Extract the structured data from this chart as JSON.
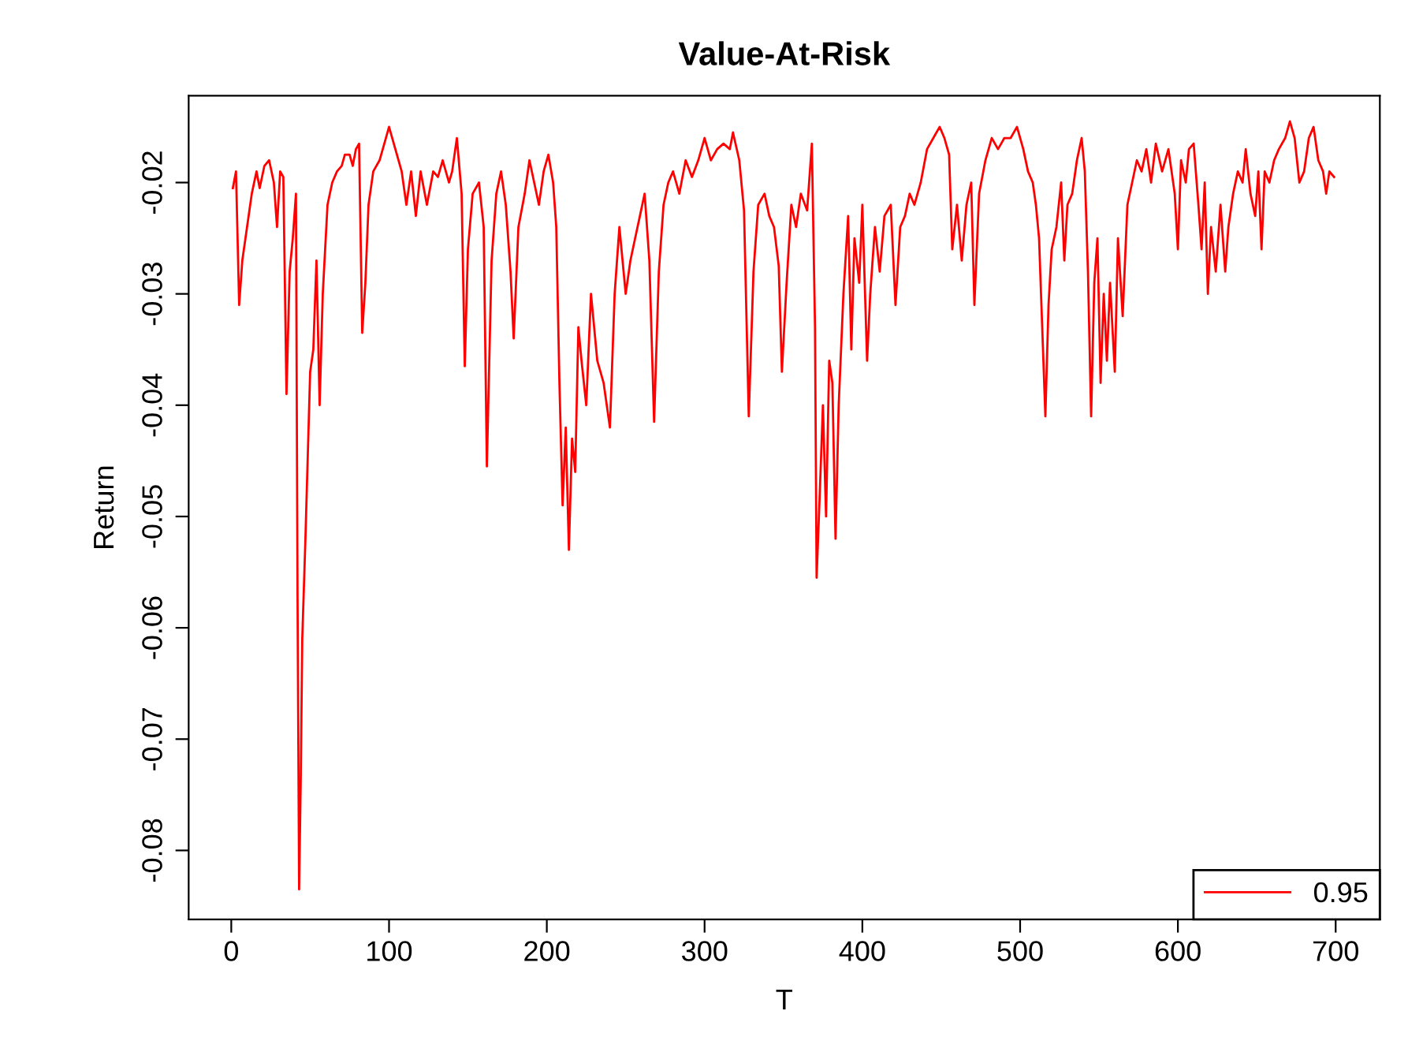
{
  "chart_data": {
    "type": "line",
    "title": "Value-At-Risk",
    "xlabel": "T",
    "ylabel": "Return",
    "xlim": [
      -27,
      728
    ],
    "xticks": [
      0,
      100,
      200,
      300,
      400,
      500,
      600,
      700
    ],
    "ylim": [
      -0.0862,
      -0.0122
    ],
    "yticks": [
      -0.08,
      -0.07,
      -0.06,
      -0.05,
      -0.04,
      -0.03,
      -0.02
    ],
    "grid": false,
    "legend": "bottom right",
    "marker": "none",
    "line_style": "solid",
    "series": [
      {
        "name": "0.95",
        "color": "#ff0000",
        "x": [
          1,
          3,
          5,
          7,
          10,
          13,
          16,
          18,
          21,
          24,
          27,
          29,
          31,
          33,
          35,
          37,
          39,
          41,
          42,
          43,
          44,
          45,
          47,
          50,
          52,
          54,
          56,
          58,
          61,
          64,
          67,
          70,
          72,
          75,
          77,
          79,
          81,
          83,
          85,
          87,
          90,
          94,
          98,
          100,
          104,
          108,
          111,
          114,
          117,
          120,
          124,
          128,
          131,
          134,
          138,
          140,
          143,
          146,
          148,
          150,
          153,
          157,
          160,
          162,
          165,
          168,
          171,
          174,
          177,
          179,
          182,
          186,
          189,
          192,
          195,
          198,
          201,
          204,
          206,
          208,
          210,
          212,
          214,
          216,
          218,
          220,
          222,
          225,
          228,
          232,
          236,
          240,
          243,
          246,
          250,
          253,
          256,
          259,
          262,
          265,
          268,
          271,
          274,
          277,
          280,
          284,
          288,
          292,
          296,
          300,
          304,
          308,
          312,
          316,
          318,
          322,
          325,
          328,
          331,
          334,
          338,
          341,
          344,
          347,
          349,
          352,
          355,
          358,
          361,
          365,
          368,
          370,
          371,
          373,
          375,
          377,
          379,
          381,
          383,
          385,
          388,
          391,
          393,
          395,
          398,
          400,
          403,
          405,
          408,
          411,
          414,
          418,
          421,
          424,
          427,
          430,
          433,
          437,
          441,
          445,
          449,
          452,
          455,
          457,
          460,
          463,
          466,
          469,
          471,
          474,
          478,
          482,
          486,
          490,
          494,
          498,
          502,
          505,
          508,
          510,
          512,
          514,
          516,
          518,
          520,
          523,
          526,
          528,
          530,
          533,
          536,
          539,
          541,
          543,
          545,
          547,
          549,
          551,
          553,
          555,
          557,
          560,
          562,
          565,
          568,
          571,
          574,
          577,
          580,
          583,
          586,
          590,
          594,
          598,
          600,
          602,
          605,
          607,
          610,
          613,
          615,
          617,
          619,
          621,
          624,
          627,
          630,
          632,
          635,
          638,
          641,
          643,
          646,
          649,
          651,
          653,
          655,
          658,
          661,
          664,
          668,
          671,
          674,
          677,
          680,
          683,
          686,
          689,
          692,
          694,
          696,
          699
        ],
        "values": [
          -0.0205,
          -0.019,
          -0.031,
          -0.027,
          -0.024,
          -0.021,
          -0.019,
          -0.0205,
          -0.0185,
          -0.018,
          -0.02,
          -0.024,
          -0.019,
          -0.0195,
          -0.039,
          -0.028,
          -0.025,
          -0.021,
          -0.057,
          -0.0835,
          -0.074,
          -0.061,
          -0.052,
          -0.037,
          -0.035,
          -0.027,
          -0.04,
          -0.03,
          -0.022,
          -0.02,
          -0.019,
          -0.0185,
          -0.0175,
          -0.0175,
          -0.0185,
          -0.017,
          -0.0165,
          -0.0335,
          -0.029,
          -0.022,
          -0.019,
          -0.018,
          -0.016,
          -0.015,
          -0.017,
          -0.019,
          -0.022,
          -0.019,
          -0.023,
          -0.019,
          -0.022,
          -0.019,
          -0.0195,
          -0.018,
          -0.02,
          -0.019,
          -0.016,
          -0.021,
          -0.0365,
          -0.026,
          -0.021,
          -0.02,
          -0.024,
          -0.0455,
          -0.027,
          -0.021,
          -0.019,
          -0.022,
          -0.028,
          -0.034,
          -0.024,
          -0.021,
          -0.018,
          -0.02,
          -0.022,
          -0.019,
          -0.0175,
          -0.02,
          -0.024,
          -0.038,
          -0.049,
          -0.042,
          -0.053,
          -0.043,
          -0.046,
          -0.033,
          -0.036,
          -0.04,
          -0.03,
          -0.036,
          -0.038,
          -0.042,
          -0.03,
          -0.024,
          -0.03,
          -0.027,
          -0.025,
          -0.023,
          -0.021,
          -0.027,
          -0.0415,
          -0.028,
          -0.022,
          -0.02,
          -0.019,
          -0.021,
          -0.018,
          -0.0195,
          -0.018,
          -0.016,
          -0.018,
          -0.017,
          -0.0165,
          -0.017,
          -0.0155,
          -0.018,
          -0.0225,
          -0.041,
          -0.028,
          -0.022,
          -0.021,
          -0.023,
          -0.024,
          -0.0275,
          -0.037,
          -0.029,
          -0.022,
          -0.024,
          -0.021,
          -0.0225,
          -0.0165,
          -0.033,
          -0.0555,
          -0.048,
          -0.04,
          -0.05,
          -0.036,
          -0.038,
          -0.052,
          -0.04,
          -0.03,
          -0.023,
          -0.035,
          -0.025,
          -0.029,
          -0.022,
          -0.036,
          -0.03,
          -0.024,
          -0.028,
          -0.023,
          -0.022,
          -0.031,
          -0.024,
          -0.023,
          -0.021,
          -0.022,
          -0.02,
          -0.017,
          -0.016,
          -0.015,
          -0.016,
          -0.0175,
          -0.026,
          -0.022,
          -0.027,
          -0.022,
          -0.02,
          -0.031,
          -0.021,
          -0.018,
          -0.016,
          -0.017,
          -0.016,
          -0.016,
          -0.015,
          -0.017,
          -0.019,
          -0.02,
          -0.022,
          -0.025,
          -0.033,
          -0.041,
          -0.031,
          -0.026,
          -0.024,
          -0.02,
          -0.027,
          -0.022,
          -0.021,
          -0.018,
          -0.016,
          -0.019,
          -0.028,
          -0.041,
          -0.029,
          -0.025,
          -0.038,
          -0.03,
          -0.036,
          -0.029,
          -0.037,
          -0.025,
          -0.032,
          -0.022,
          -0.02,
          -0.018,
          -0.019,
          -0.017,
          -0.02,
          -0.0165,
          -0.019,
          -0.017,
          -0.021,
          -0.026,
          -0.018,
          -0.02,
          -0.017,
          -0.0165,
          -0.022,
          -0.026,
          -0.02,
          -0.03,
          -0.024,
          -0.028,
          -0.022,
          -0.028,
          -0.024,
          -0.021,
          -0.019,
          -0.02,
          -0.017,
          -0.021,
          -0.023,
          -0.019,
          -0.026,
          -0.019,
          -0.02,
          -0.018,
          -0.017,
          -0.016,
          -0.0145,
          -0.016,
          -0.02,
          -0.019,
          -0.016,
          -0.015,
          -0.018,
          -0.019,
          -0.021,
          -0.019,
          -0.0195
        ]
      }
    ]
  }
}
